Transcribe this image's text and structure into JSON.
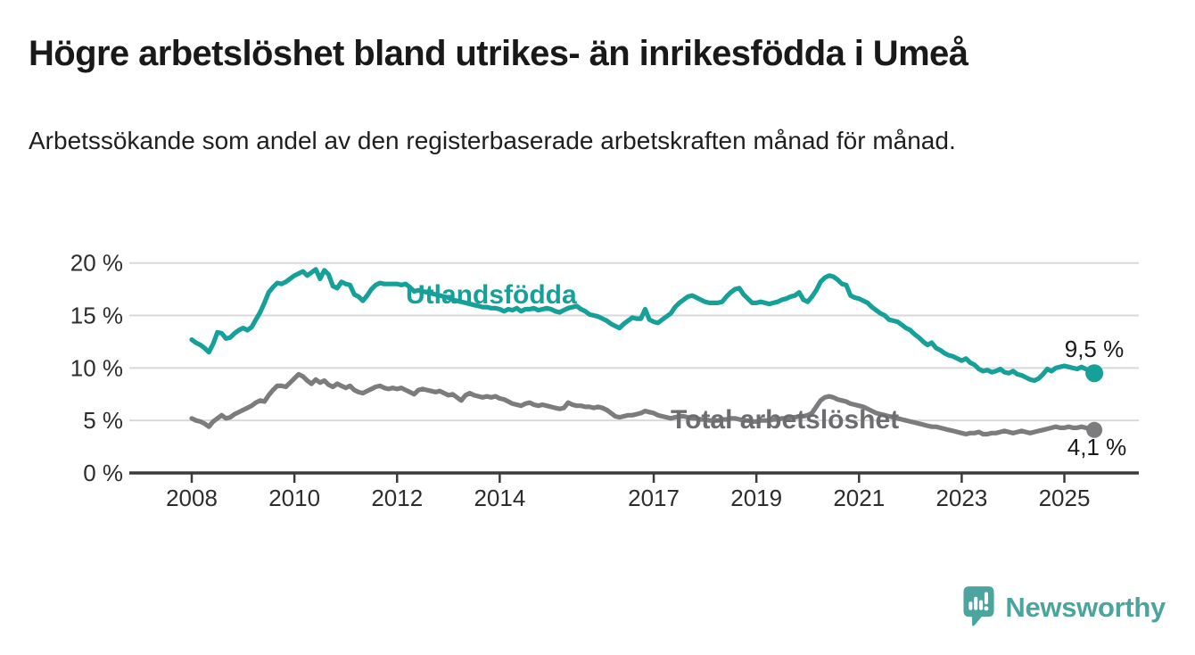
{
  "header": {
    "title": "Högre arbetslöshet bland utrikes- än inrikesfödda i Umeå",
    "subtitle": "Arbetssökande som andel av den registerbaserade arbetskraften månad för månad."
  },
  "chart_data": {
    "type": "line",
    "title": "Högre arbetslöshet bland utrikes- än inrikesfödda i Umeå",
    "subtitle": "Arbetssökande som andel av den registerbaserade arbetskraften månad för månad.",
    "x_unit": "monthly decimal years",
    "x_start": 2008.0,
    "x_end": 2025.583,
    "x_ticks": [
      2008,
      2010,
      2012,
      2014,
      2017,
      2019,
      2021,
      2023,
      2025
    ],
    "y_ticks": [
      0,
      5,
      10,
      15,
      20
    ],
    "y_tick_suffix": " %",
    "ylim": [
      0,
      21
    ],
    "grid": "horizontal",
    "legend_position": "inline-labels-on-lines",
    "series": [
      {
        "name": "Utlandsfödda",
        "color": "#15a09a",
        "end_value": 9.5,
        "end_label": "9,5 %",
        "values": [
          12.7,
          12.4,
          12.2,
          11.9,
          11.5,
          12.3,
          13.4,
          13.3,
          12.8,
          12.9,
          13.3,
          13.6,
          13.8,
          13.6,
          13.9,
          14.6,
          15.3,
          16.2,
          17.2,
          17.7,
          18.1,
          18.0,
          18.2,
          18.5,
          18.8,
          19.0,
          19.2,
          18.8,
          19.1,
          19.4,
          18.5,
          19.3,
          18.9,
          17.8,
          17.6,
          18.2,
          18.0,
          17.9,
          17.0,
          16.8,
          16.4,
          16.9,
          17.5,
          17.9,
          18.1,
          18.0,
          18.0,
          18.0,
          18.0,
          17.9,
          18.0,
          17.7,
          17.3,
          17.4,
          17.3,
          17.2,
          17.1,
          17.0,
          16.9,
          16.8,
          16.7,
          16.5,
          16.4,
          16.3,
          16.2,
          16.1,
          16.0,
          15.9,
          15.8,
          15.8,
          15.7,
          15.7,
          15.6,
          15.4,
          15.6,
          15.5,
          15.7,
          15.4,
          15.6,
          15.6,
          15.7,
          15.5,
          15.6,
          15.7,
          15.6,
          15.4,
          15.3,
          15.5,
          15.7,
          15.8,
          15.9,
          15.6,
          15.4,
          15.1,
          15.0,
          14.9,
          14.7,
          14.5,
          14.2,
          14.0,
          13.8,
          14.2,
          14.5,
          14.8,
          14.7,
          14.7,
          15.6,
          14.6,
          14.4,
          14.3,
          14.6,
          14.9,
          15.2,
          15.8,
          16.2,
          16.5,
          16.8,
          16.9,
          16.7,
          16.5,
          16.3,
          16.2,
          16.2,
          16.2,
          16.3,
          16.8,
          17.2,
          17.5,
          17.6,
          17.0,
          16.6,
          16.2,
          16.2,
          16.3,
          16.2,
          16.1,
          16.2,
          16.3,
          16.5,
          16.6,
          16.8,
          16.9,
          17.2,
          16.5,
          16.3,
          16.8,
          17.4,
          18.2,
          18.6,
          18.8,
          18.7,
          18.4,
          18.0,
          17.9,
          16.9,
          16.7,
          16.6,
          16.4,
          16.2,
          15.8,
          15.5,
          15.2,
          15.0,
          14.6,
          14.5,
          14.4,
          14.1,
          13.8,
          13.6,
          13.2,
          12.9,
          12.5,
          12.2,
          12.4,
          11.9,
          11.7,
          11.4,
          11.2,
          11.1,
          10.9,
          10.7,
          10.9,
          10.5,
          10.3,
          9.9,
          9.7,
          9.8,
          9.6,
          9.7,
          9.9,
          9.6,
          9.5,
          9.7,
          9.4,
          9.3,
          9.1,
          8.9,
          8.8,
          9.0,
          9.4,
          9.9,
          9.7,
          10.0,
          10.1,
          10.2,
          10.1,
          10.0,
          9.9,
          10.1,
          9.9,
          9.7,
          9.5
        ]
      },
      {
        "name": "Total arbetslöshet",
        "color": "#7c7c7f",
        "label_color": "#6d6d70",
        "end_value": 4.1,
        "end_label": "4,1 %",
        "values": [
          5.2,
          5.0,
          4.9,
          4.7,
          4.4,
          4.9,
          5.2,
          5.5,
          5.2,
          5.3,
          5.6,
          5.8,
          6.0,
          6.2,
          6.4,
          6.7,
          6.9,
          6.8,
          7.4,
          7.9,
          8.3,
          8.3,
          8.2,
          8.6,
          9.0,
          9.4,
          9.2,
          8.8,
          8.5,
          8.9,
          8.6,
          8.8,
          8.4,
          8.2,
          8.5,
          8.3,
          8.1,
          8.3,
          7.9,
          7.7,
          7.6,
          7.8,
          8.0,
          8.2,
          8.3,
          8.1,
          8.0,
          8.1,
          8.0,
          8.1,
          7.9,
          7.7,
          7.5,
          7.9,
          8.0,
          7.9,
          7.8,
          7.7,
          7.8,
          7.6,
          7.4,
          7.5,
          7.2,
          6.9,
          7.4,
          7.6,
          7.4,
          7.3,
          7.2,
          7.3,
          7.2,
          7.3,
          7.1,
          7.0,
          6.8,
          6.6,
          6.5,
          6.4,
          6.6,
          6.7,
          6.5,
          6.4,
          6.5,
          6.4,
          6.3,
          6.2,
          6.1,
          6.2,
          6.7,
          6.5,
          6.4,
          6.4,
          6.3,
          6.3,
          6.2,
          6.3,
          6.2,
          6.0,
          5.7,
          5.4,
          5.3,
          5.4,
          5.5,
          5.5,
          5.6,
          5.7,
          5.9,
          5.8,
          5.7,
          5.5,
          5.4,
          5.3,
          5.2,
          5.3,
          5.4,
          5.4,
          5.3,
          5.2,
          5.2,
          5.1,
          5.1,
          5.0,
          5.0,
          5.0,
          5.1,
          5.1,
          5.2,
          5.2,
          5.1,
          5.0,
          5.0,
          4.9,
          4.9,
          5.0,
          5.0,
          5.0,
          5.1,
          5.1,
          5.2,
          5.2,
          5.3,
          5.3,
          5.4,
          5.4,
          5.5,
          5.7,
          6.3,
          6.9,
          7.2,
          7.3,
          7.2,
          7.0,
          6.9,
          6.8,
          6.6,
          6.5,
          6.4,
          6.3,
          6.1,
          5.9,
          5.7,
          5.6,
          5.5,
          5.4,
          5.3,
          5.2,
          5.1,
          5.0,
          4.9,
          4.8,
          4.7,
          4.6,
          4.5,
          4.4,
          4.4,
          4.3,
          4.2,
          4.1,
          4.0,
          3.9,
          3.8,
          3.7,
          3.8,
          3.8,
          3.9,
          3.7,
          3.7,
          3.8,
          3.8,
          3.9,
          4.0,
          3.9,
          3.8,
          3.9,
          4.0,
          3.9,
          3.8,
          3.9,
          4.0,
          4.1,
          4.2,
          4.3,
          4.4,
          4.3,
          4.3,
          4.4,
          4.3,
          4.3,
          4.4,
          4.3,
          4.2,
          4.1
        ]
      }
    ]
  },
  "footer": {
    "brand": "Newsworthy",
    "logo_icon": "speech-bubble-bar-chart-icon",
    "brand_color": "#4ba49e"
  },
  "colors": {
    "teal": "#15a09a",
    "gray": "#7c7c7f",
    "gridline": "#d9d9d9",
    "axis": "#3b3b3b",
    "text": "#191919"
  }
}
